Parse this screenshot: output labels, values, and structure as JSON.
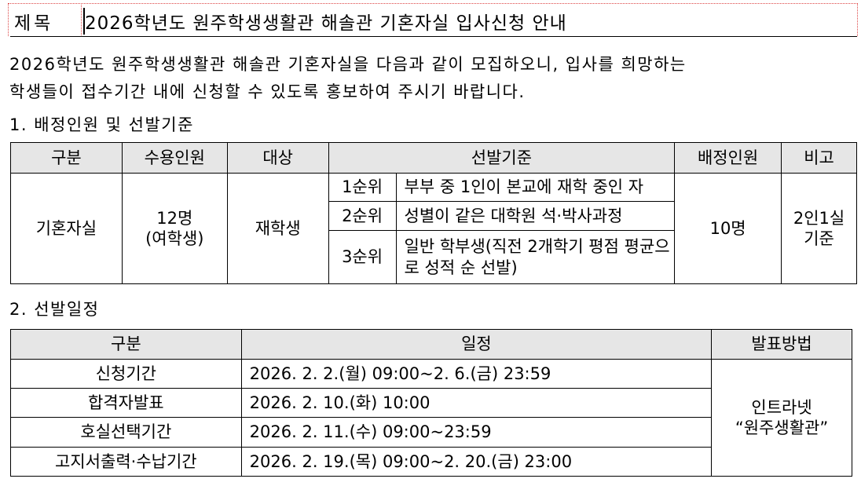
{
  "title": {
    "label": "제목",
    "text": "2026학년도 원주학생생활관 해솔관 기혼자실 입사신청 안내"
  },
  "intro": [
    "2026학년도 원주학생생활관 해솔관 기혼자실을 다음과 같이 모집하오니, 입사를 희망하는",
    "학생들이 접수기간 내에 신청할 수 있도록 홍보하여 주시기 바랍니다."
  ],
  "section1": {
    "heading": "1. 배정인원 및 선발기준",
    "headers": [
      "구분",
      "수용인원",
      "대상",
      "선발기준",
      "배정인원",
      "비고"
    ],
    "category": "기혼자실",
    "capacity": [
      "12명",
      "(여학생)"
    ],
    "target": "재학생",
    "criteria": [
      {
        "rank": "1순위",
        "desc": "부부 중 1인이 본교에 재학 중인 자"
      },
      {
        "rank": "2순위",
        "desc": "성별이 같은 대학원 석·박사과정"
      },
      {
        "rank": "3순위",
        "desc": "일반 학부생(직전 2개학기 평점 평균으로 성적 순 선발)"
      }
    ],
    "assigned": "10명",
    "note": [
      "2인1실",
      "기준"
    ]
  },
  "section2": {
    "heading": "2. 선발일정",
    "headers": [
      "구분",
      "일정",
      "발표방법"
    ],
    "rows": [
      {
        "item": "신청기간",
        "date": "2026. 2. 2.(월) 09:00~2. 6.(금) 23:59"
      },
      {
        "item": "합격자발표",
        "date": "2026. 2. 10.(화) 10:00"
      },
      {
        "item": "호실선택기간",
        "date": "2026. 2. 11.(수) 09:00~23:59"
      },
      {
        "item": "고지서출력·수납기간",
        "date": "2026. 2. 19.(목) 09:00~2. 20.(금) 23:00"
      }
    ],
    "method": [
      "인트라넷",
      "“원주생활관”"
    ]
  }
}
